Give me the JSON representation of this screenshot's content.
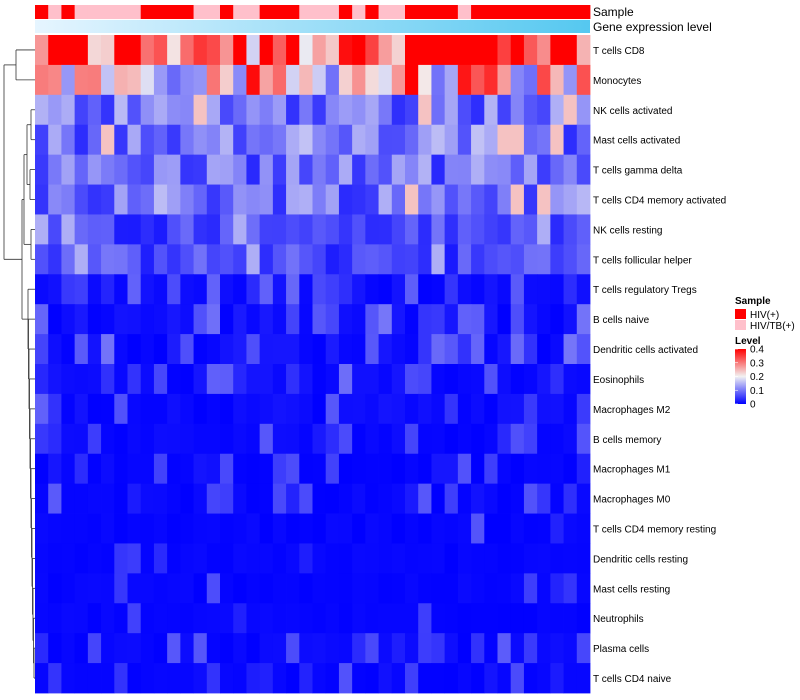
{
  "chart_data": {
    "type": "heatmap",
    "title": "",
    "annotation_tracks": [
      {
        "name": "Sample",
        "kind": "categorical"
      },
      {
        "name": "Gene expression level",
        "kind": "continuous"
      }
    ],
    "sample_groups": [
      "R",
      "P",
      "R",
      "P",
      "P",
      "P",
      "P",
      "P",
      "R",
      "R",
      "R",
      "R",
      "P",
      "P",
      "R",
      "P",
      "P",
      "R",
      "R",
      "R",
      "P",
      "P",
      "P",
      "R",
      "P",
      "R",
      "P",
      "P",
      "R",
      "R",
      "R",
      "R",
      "P",
      "R",
      "R",
      "R",
      "R",
      "R",
      "R",
      "R",
      "R",
      "R"
    ],
    "row_labels": [
      "T cells CD8",
      "Monocytes",
      "NK cells activated",
      "Mast cells activated",
      "T cells gamma delta",
      "T cells CD4 memory activated",
      "NK cells resting",
      "T cells follicular helper",
      "T cells regulatory  Tregs",
      "B cells naive",
      "Dendritic cells activated",
      "Eosinophils",
      "Macrophages M2",
      "B cells memory",
      "Macrophages M1",
      "Macrophages M0",
      "T cells CD4 memory resting",
      "Dendritic cells resting",
      "Mast cells resting",
      "Neutrophils",
      "Plasma cells",
      "T cells CD4 naive"
    ],
    "columns": 42,
    "row_means": [
      0.37,
      0.24,
      0.1,
      0.1,
      0.09,
      0.1,
      0.06,
      0.06,
      0.03,
      0.04,
      0.04,
      0.03,
      0.03,
      0.02,
      0.01,
      0.015,
      0.005,
      0.005,
      0.002,
      0.002,
      0.02,
      0.01
    ],
    "value_range": [
      0,
      0.4
    ],
    "legend": {
      "sample": {
        "title": "Sample",
        "entries": [
          {
            "label": "HIV(+)",
            "color": "#ff0000"
          },
          {
            "label": "HIV/TB(+)",
            "color": "#ffc0cb"
          }
        ]
      },
      "level": {
        "title": "Level",
        "ticks": [
          {
            "value": 0.4,
            "label": "0.4"
          },
          {
            "value": 0.3,
            "label": "0.3"
          },
          {
            "value": 0.2,
            "label": "0.2"
          },
          {
            "value": 0.1,
            "label": "0.1"
          },
          {
            "value": 0,
            "label": "0"
          }
        ]
      }
    },
    "colors": {
      "low": "#0000ff",
      "mid": "#f2f2f2",
      "high": "#ff0000",
      "group_R": "#ff0000",
      "group_P": "#ffc0cb",
      "expr_start": "#e6f5ff",
      "expr_end": "#55c8f0",
      "dendrogram": "#333333",
      "text": "#000000"
    }
  }
}
